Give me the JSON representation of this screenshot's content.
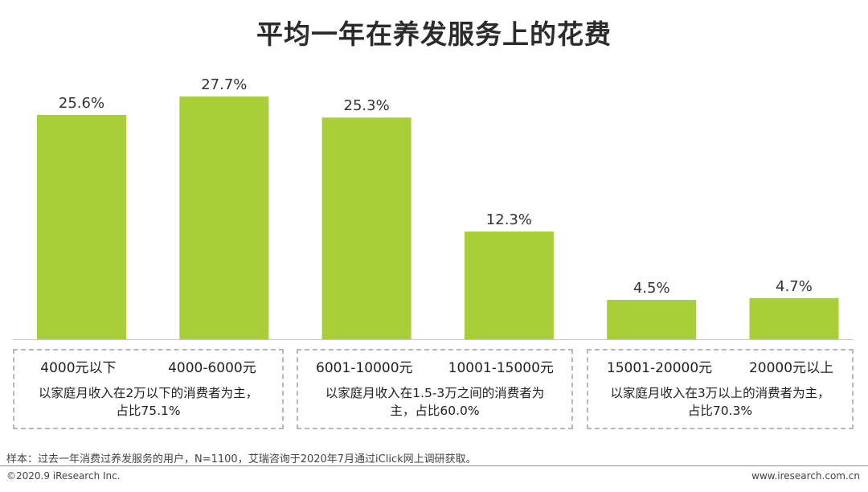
{
  "title": "平均一年在养发服务上的花费",
  "chart_data": {
    "type": "bar",
    "categories": [
      "4000元以下",
      "4000-6000元",
      "6001-10000元",
      "10001-15000元",
      "15001-20000元",
      "20000元以上"
    ],
    "values": [
      25.6,
      27.7,
      25.3,
      12.3,
      4.5,
      4.7
    ],
    "value_labels": [
      "25.6%",
      "27.7%",
      "25.3%",
      "12.3%",
      "4.5%",
      "4.7%"
    ],
    "unit": "%",
    "ylim": [
      0,
      30
    ],
    "bar_color": "#a9cf38",
    "grid": false,
    "legend": "none"
  },
  "groups": [
    {
      "categories": [
        "4000元以下",
        "4000-6000元"
      ],
      "note": "以家庭月收入在2万以下的消费者为主，\n占比75.1%"
    },
    {
      "categories": [
        "6001-10000元",
        "10001-15000元"
      ],
      "note": "以家庭月收入在1.5-3万之间的消费者为\n主，占比60.0%"
    },
    {
      "categories": [
        "15001-20000元",
        "20000元以上"
      ],
      "note": "以家庭月收入在3万以上的消费者为主，\n占比70.3%"
    }
  ],
  "footer": {
    "source": "样本：过去一年消费过养发服务的用户，N=1100，艾瑞咨询于2020年7月通过iClick网上调研获取。",
    "copyright": "©2020.9 iResearch Inc.",
    "website": "www.iresearch.com.cn"
  }
}
